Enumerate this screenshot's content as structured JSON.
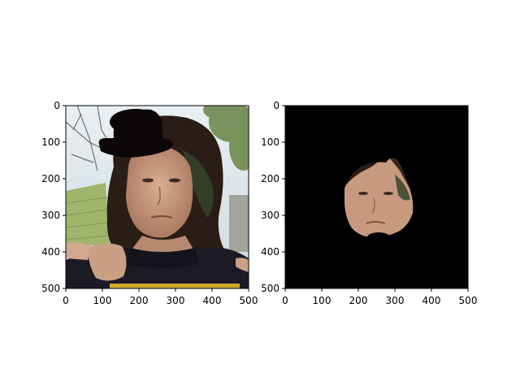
{
  "figure": {
    "background": "#ffffff",
    "panels": [
      {
        "id": "left",
        "description_kind": "photo-with-hat-overlay",
        "x_ticks": [
          "0",
          "100",
          "200",
          "300",
          "400",
          "500"
        ],
        "y_ticks": [
          "0",
          "100",
          "200",
          "300",
          "400",
          "500"
        ],
        "xlim": [
          0,
          500
        ],
        "ylim": [
          500,
          0
        ]
      },
      {
        "id": "right",
        "description_kind": "masked-face-on-black",
        "x_ticks": [
          "0",
          "100",
          "200",
          "300",
          "400",
          "500"
        ],
        "y_ticks": [
          "0",
          "100",
          "200",
          "300",
          "400",
          "500"
        ],
        "xlim": [
          0,
          500
        ],
        "ylim": [
          500,
          0
        ]
      }
    ],
    "colors": {
      "sky": "#dfe9ef",
      "foliage": "#6f8a4e",
      "wall": "#9fb56b",
      "hair": "#2a1d16",
      "skin": "#c79a7f",
      "sweater": "#1c1a24",
      "hat": "#0c0707",
      "mask_bg": "#000000",
      "frame": "#000000"
    }
  }
}
